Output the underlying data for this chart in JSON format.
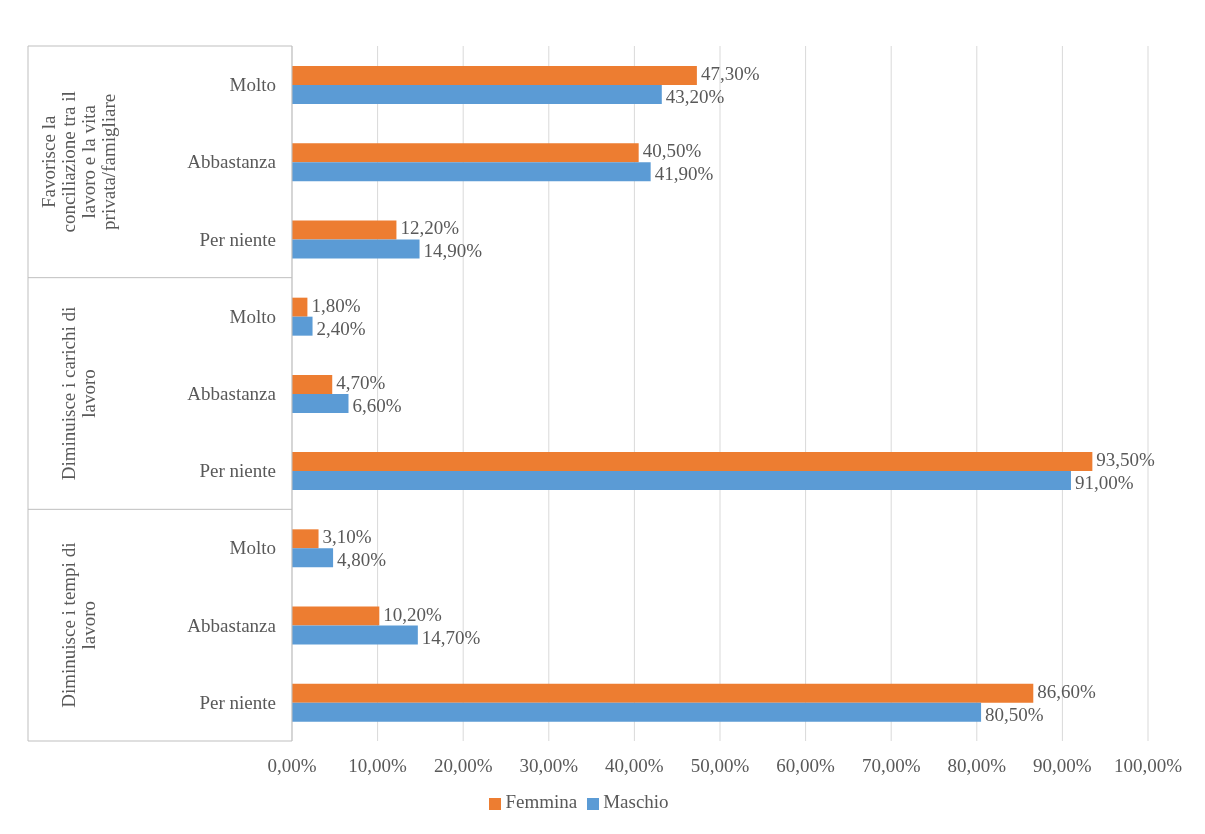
{
  "chart_data": {
    "type": "bar",
    "orientation": "horizontal",
    "categories": [
      "Molto",
      "Abbastanza",
      "Per niente",
      "Molto",
      "Abbastanza",
      "Per niente",
      "Molto",
      "Abbastanza",
      "Per niente"
    ],
    "annotations": [
      "Favorisce la conciliazione tra il lavoro e la vita privata/famigliare",
      "Diminuisce i carichi di lavoro",
      "Diminuisce i tempi di lavoro"
    ],
    "series": [
      {
        "name": "Femmina",
        "color": "#ed7d31",
        "values": [
          47.3,
          40.5,
          12.2,
          1.8,
          4.7,
          93.5,
          3.1,
          10.2,
          86.6
        ],
        "value_labels": [
          "47,30%",
          "40,50%",
          "12,20%",
          "1,80%",
          "4,70%",
          "93,50%",
          "3,10%",
          "10,20%",
          "86,60%"
        ]
      },
      {
        "name": "Maschio",
        "color": "#5b9bd5",
        "values": [
          43.2,
          41.9,
          14.9,
          2.4,
          6.6,
          91.0,
          4.8,
          14.7,
          80.5
        ],
        "value_labels": [
          "43,20%",
          "41,90%",
          "14,90%",
          "2,40%",
          "6,60%",
          "91,00%",
          "4,80%",
          "14,70%",
          "80,50%"
        ]
      }
    ],
    "xlim": [
      0,
      100
    ],
    "xticks": [
      {
        "value": 0,
        "label": "0,00%"
      },
      {
        "value": 10,
        "label": "10,00%"
      },
      {
        "value": 20,
        "label": "20,00%"
      },
      {
        "value": 30,
        "label": "30,00%"
      },
      {
        "value": 40,
        "label": "40,00%"
      },
      {
        "value": 50,
        "label": "50,00%"
      },
      {
        "value": 60,
        "label": "60,00%"
      },
      {
        "value": 70,
        "label": "70,00%"
      },
      {
        "value": 80,
        "label": "80,00%"
      },
      {
        "value": 90,
        "label": "90,00%"
      },
      {
        "value": 100,
        "label": "100,00%"
      }
    ],
    "grid": "x",
    "legend": "bottom"
  }
}
